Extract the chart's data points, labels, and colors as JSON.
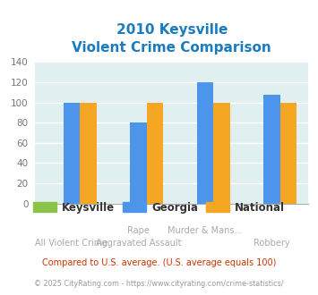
{
  "title_line1": "2010 Keysville",
  "title_line2": "Violent Crime Comparison",
  "title_color": "#1a7bbf",
  "keysville": [
    0,
    0,
    0,
    0
  ],
  "georgia": [
    100,
    80,
    120,
    108
  ],
  "national": [
    100,
    100,
    100,
    100
  ],
  "keysville_color": "#8bc34a",
  "georgia_color": "#4d94eb",
  "national_color": "#f5a623",
  "ylim": [
    0,
    140
  ],
  "yticks": [
    0,
    20,
    40,
    60,
    80,
    100,
    120,
    140
  ],
  "bg_color": "#e0eff0",
  "fig_bg": "#ffffff",
  "legend_labels": [
    "Keysville",
    "Georgia",
    "National"
  ],
  "top_labels": [
    "",
    "Rape",
    "Murder & Mans...",
    ""
  ],
  "bot_labels": [
    "All Violent Crime",
    "Aggravated Assault",
    "",
    "Robbery"
  ],
  "footer1": "Compared to U.S. average. (U.S. average equals 100)",
  "footer2": "© 2025 CityRating.com - https://www.cityrating.com/crime-statistics/",
  "footer1_color": "#cc3300",
  "footer2_color": "#999999",
  "tick_color": "#aaaaaa",
  "label_color": "#aaaaaa"
}
